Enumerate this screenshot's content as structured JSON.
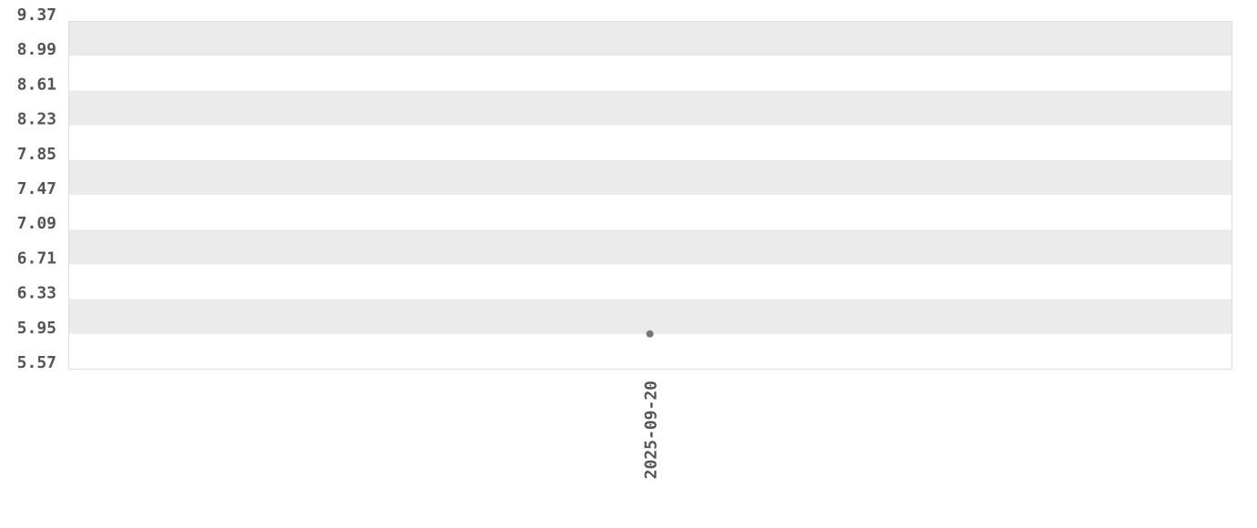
{
  "chart_data": {
    "type": "scatter",
    "title": "",
    "xlabel": "",
    "ylabel": "",
    "ylim": [
      5.57,
      9.37
    ],
    "y_ticks": [
      "9.37",
      "8.99",
      "8.61",
      "8.23",
      "7.85",
      "7.47",
      "7.09",
      "6.71",
      "6.33",
      "5.95",
      "5.57"
    ],
    "x_ticks": [
      "2025-09-20"
    ],
    "grid": "alternating horizontal bands",
    "legend": "none",
    "points": [
      {
        "x": "2025-09-20",
        "y": 5.95
      }
    ],
    "colors": {
      "band": "#ebebeb",
      "point": "#777777",
      "text": "#555555",
      "border": "#dddddd"
    }
  }
}
